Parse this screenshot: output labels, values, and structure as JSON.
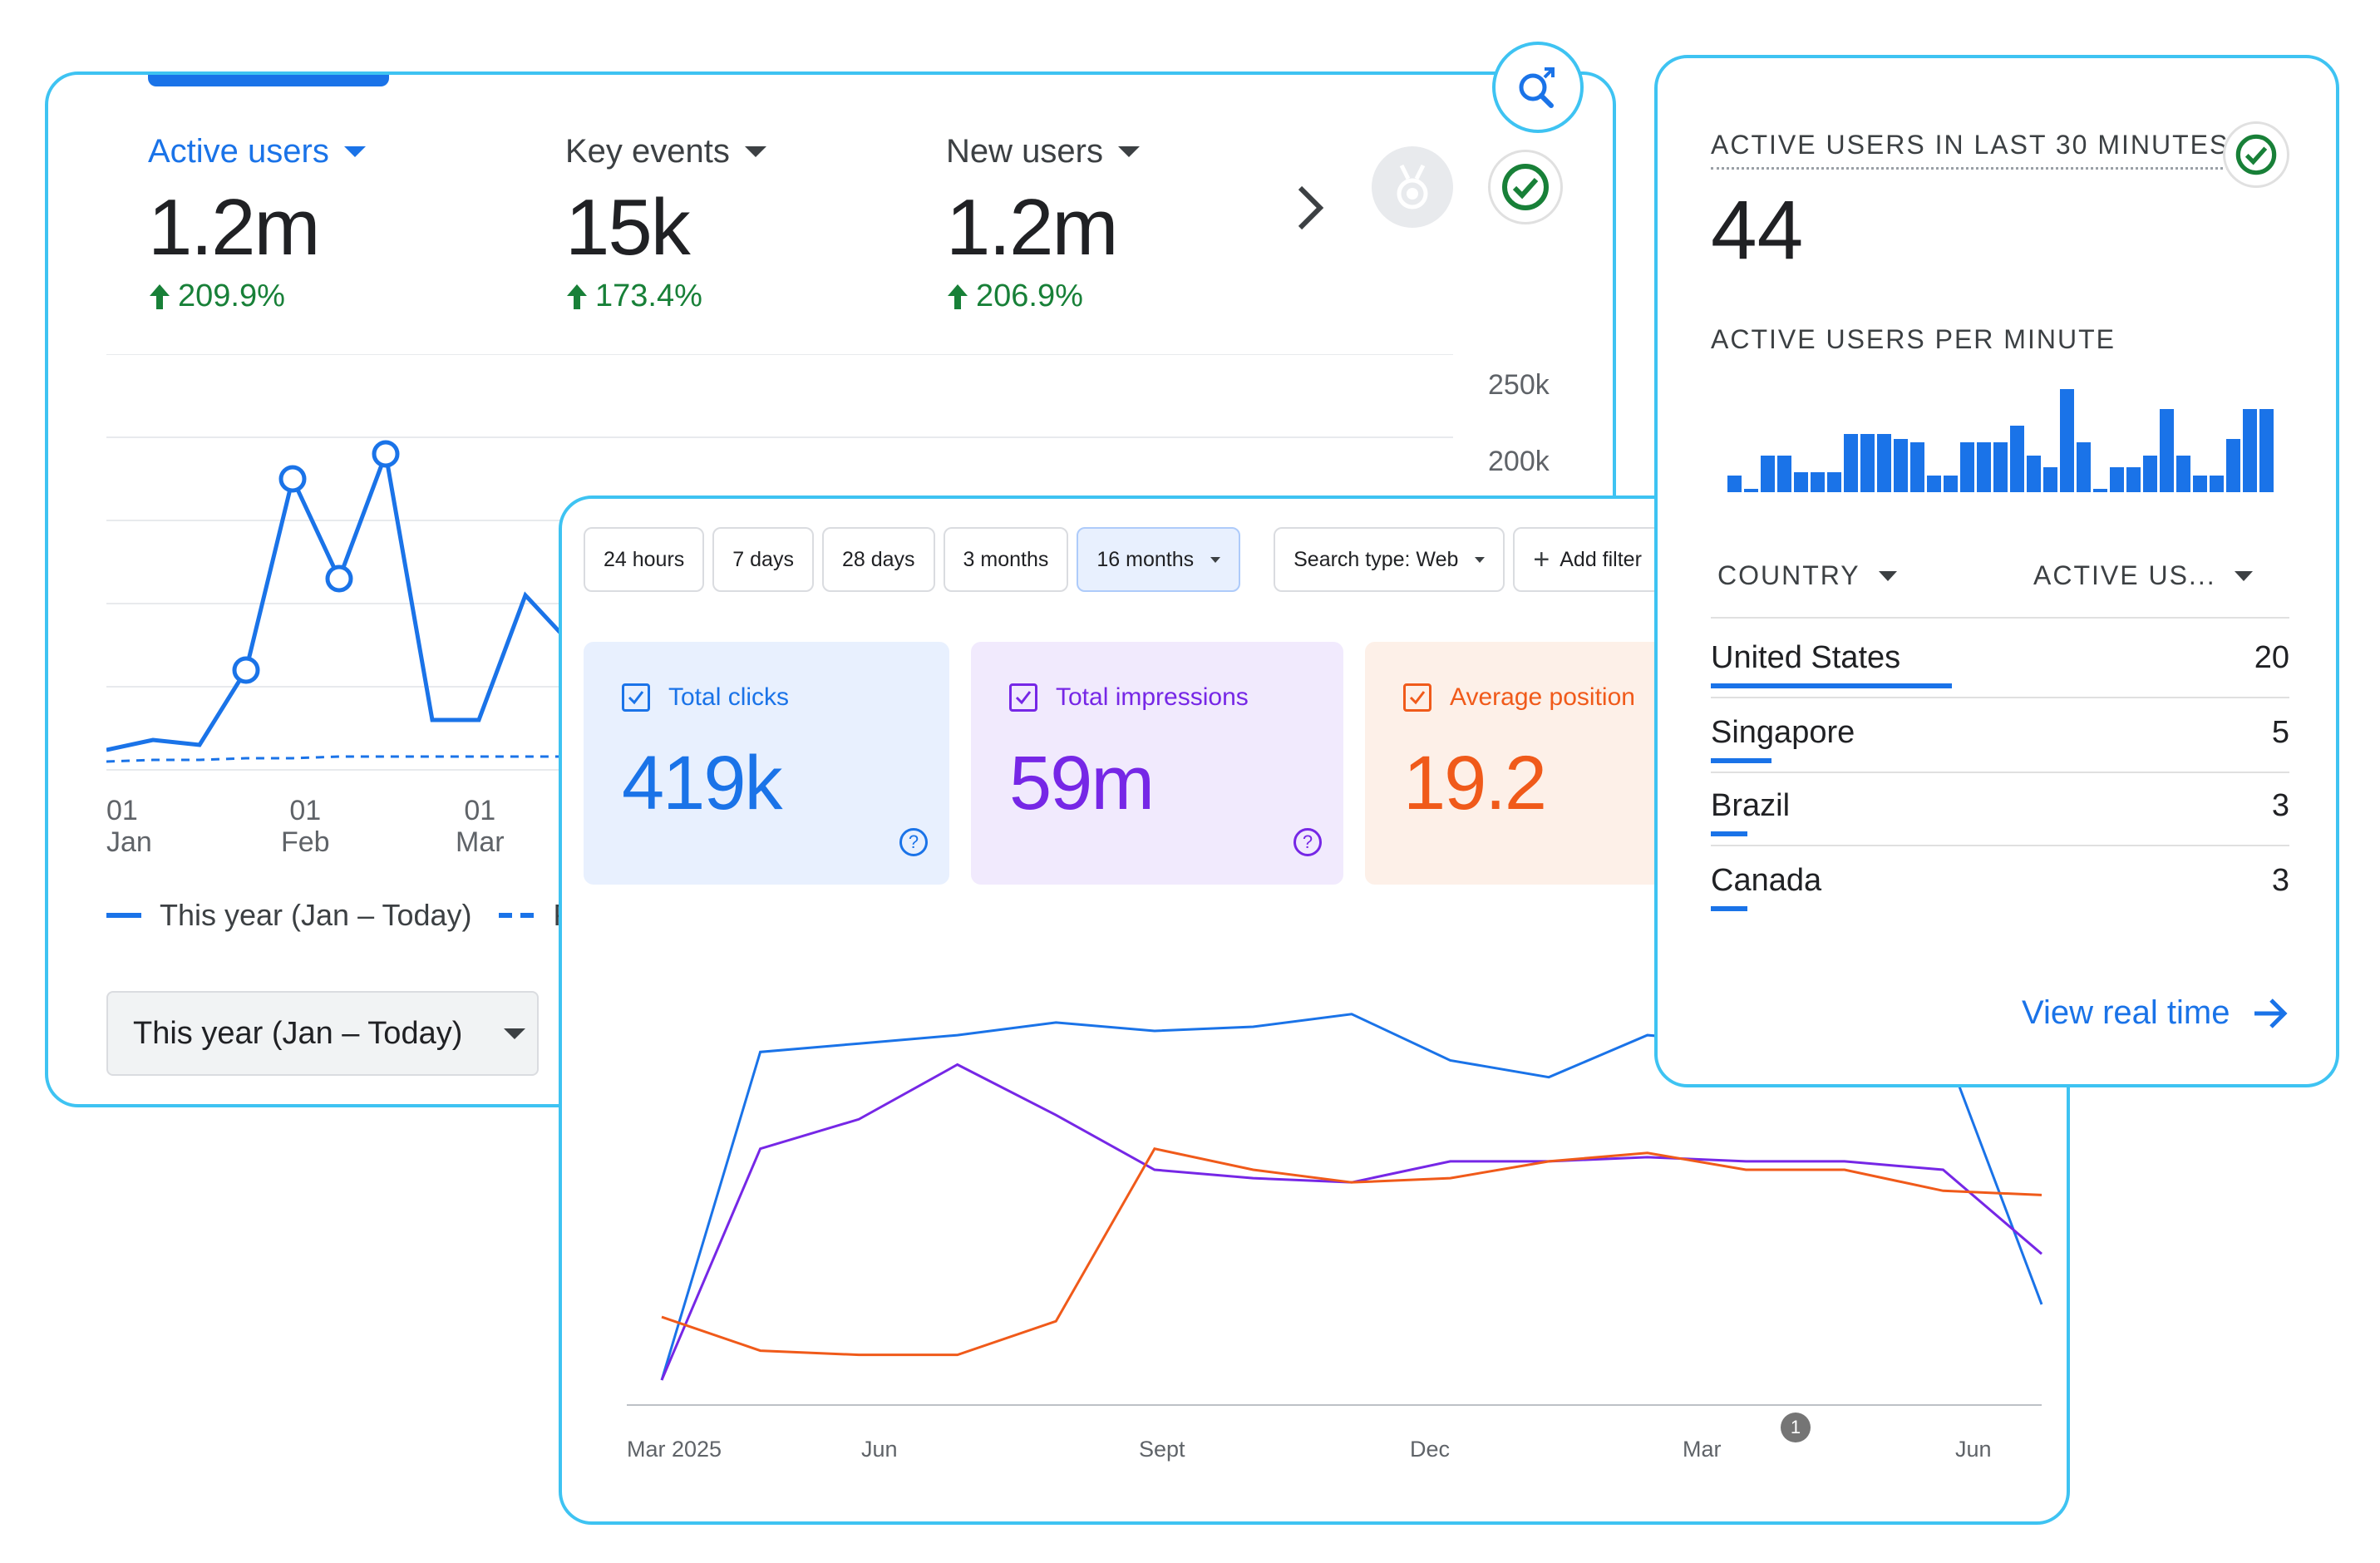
{
  "overview": {
    "metrics": [
      {
        "label": "Active users",
        "value": "1.2m",
        "change": "209.9%"
      },
      {
        "label": "Key events",
        "value": "15k",
        "change": "173.4%"
      },
      {
        "label": "New users",
        "value": "1.2m",
        "change": "206.9%"
      }
    ],
    "y_ticks": [
      "250k",
      "200k"
    ],
    "x_ticks": [
      {
        "day": "01",
        "month": "Jan"
      },
      {
        "day": "01",
        "month": "Feb"
      },
      {
        "day": "01",
        "month": "Mar"
      }
    ],
    "legend": {
      "this_year": "This year (Jan – Today)",
      "previous_fragment": "P"
    },
    "date_range": "This year (Jan – Today)",
    "colors": {
      "accent": "#1a73e8",
      "positive": "#188038"
    },
    "icons": [
      "chevron-right-icon",
      "medal-icon",
      "check-circle-icon",
      "search-insights-icon"
    ]
  },
  "chart_data": [
    {
      "type": "line",
      "series": [
        {
          "values": [
            12,
            18,
            15,
            60,
            175,
            115,
            190,
            30,
            30,
            105,
            75
          ]
        },
        {
          "values": [
            5,
            6,
            6,
            7,
            7,
            8,
            8,
            8,
            8,
            8,
            8
          ]
        }
      ],
      "ylim": [
        0,
        250
      ],
      "x_ticks": [
        "01 Jan",
        "01 Feb",
        "01 Mar"
      ],
      "y_ticks": [
        "250k",
        "200k"
      ]
    },
    {
      "type": "line",
      "series": [
        {
          "color": "#1a73e8",
          "values": [
            0,
            78,
            80,
            82,
            85,
            83,
            84,
            87,
            76,
            72,
            82,
            80,
            88,
            80,
            18
          ]
        },
        {
          "color": "#7627e6",
          "values": [
            0,
            55,
            62,
            75,
            63,
            50,
            48,
            47,
            52,
            52,
            53,
            52,
            52,
            50,
            30
          ]
        },
        {
          "color": "#f05a1a",
          "values": [
            15,
            7,
            6,
            6,
            14,
            55,
            50,
            47,
            48,
            52,
            54,
            50,
            50,
            45,
            44
          ]
        }
      ],
      "x_ticks": [
        "Mar 2025",
        "Jun",
        "Sept",
        "Dec",
        "Mar",
        "Jun"
      ],
      "annotation": "1"
    },
    {
      "type": "bar",
      "values": [
        10,
        0,
        22,
        22,
        12,
        12,
        12,
        35,
        35,
        35,
        32,
        30,
        10,
        10,
        30,
        30,
        30,
        40,
        22,
        15,
        62,
        30,
        0,
        15,
        15,
        22,
        50,
        22,
        10,
        10,
        32,
        50,
        50
      ],
      "ylim": [
        0,
        65
      ]
    }
  ],
  "search": {
    "filters": [
      "24 hours",
      "7 days",
      "28 days",
      "3 months",
      "16 months"
    ],
    "selected_filter": "16 months",
    "search_type": "Search type: Web",
    "add_filter": "Add filter",
    "tiles": [
      {
        "label": "Total clicks",
        "value": "419k",
        "color": "#1a73e8",
        "bg": "#e8f0fe"
      },
      {
        "label": "Total impressions",
        "value": "59m",
        "color": "#7627e6",
        "bg": "#f1eafd"
      },
      {
        "label": "Average position",
        "value": "19.2",
        "color": "#f05a1a",
        "bg": "#fdf0e8"
      }
    ],
    "help": "?",
    "x_ticks": [
      "Mar 2025",
      "Jun",
      "Sept",
      "Dec",
      "Mar",
      "Jun"
    ],
    "annotation": "1"
  },
  "realtime": {
    "title": "ACTIVE USERS IN LAST 30 MINUTES",
    "value": "44",
    "per_minute_label": "ACTIVE USERS PER MINUTE",
    "col_country": "COUNTRY",
    "col_active": "ACTIVE US...",
    "rows": [
      {
        "country": "United States",
        "value": "20",
        "share": 1.0
      },
      {
        "country": "Singapore",
        "value": "5",
        "share": 0.25
      },
      {
        "country": "Brazil",
        "value": "3",
        "share": 0.15
      },
      {
        "country": "Canada",
        "value": "3",
        "share": 0.15
      }
    ],
    "view_link": "View real time"
  }
}
